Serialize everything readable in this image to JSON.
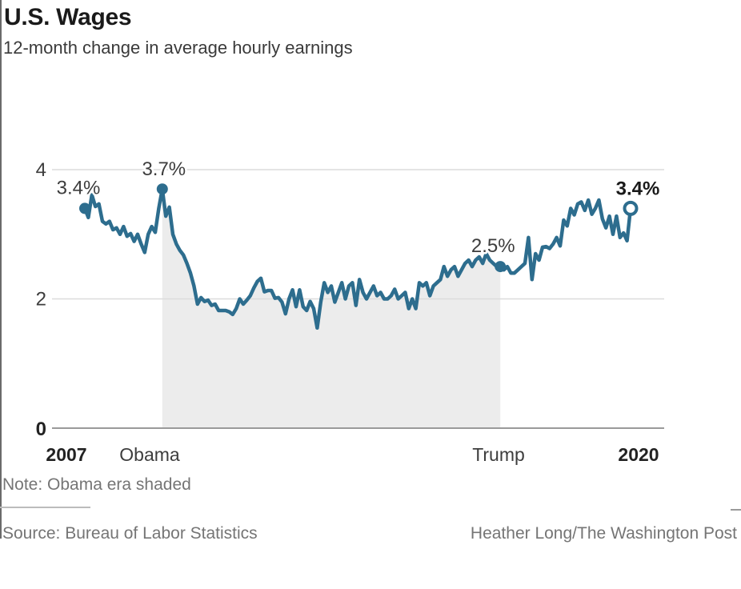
{
  "header": {
    "title": "U.S. Wages",
    "subtitle": "12-month change in average hourly earnings"
  },
  "footer": {
    "note": "Note: Obama era shaded",
    "source": "Source: Bureau of Labor Statistics",
    "credit": "Heather Long/The Washington Post"
  },
  "colors": {
    "line": "#2d6d8e",
    "shade": "#ececec",
    "grid": "#dcdcdc",
    "baseline": "#9a9a9a",
    "axis_text": "#3d3d3d",
    "axis_text_bold": "#222222",
    "annotation_text": "#3d3d3d",
    "annotation_text_bold": "#1a1a1a",
    "muted_text": "#757575"
  },
  "chart_data": {
    "type": "line",
    "title": "U.S. Wages",
    "subtitle": "12-month change in average hourly earnings",
    "unit": "percent",
    "frequency": "monthly",
    "x_start": "2007-03",
    "x_end": "2020-02",
    "ylim": [
      0,
      4.4
    ],
    "grid": true,
    "legend": "none",
    "yticks": [
      {
        "value": 4,
        "label": "4",
        "bold": false
      },
      {
        "value": 2,
        "label": "2",
        "bold": false
      },
      {
        "value": 0,
        "label": "0",
        "bold": true
      }
    ],
    "x_axis_labels": [
      {
        "label": "2007",
        "bold": true
      },
      {
        "label": "Obama",
        "bold": false
      },
      {
        "label": "Trump",
        "bold": false
      },
      {
        "label": "2020",
        "bold": true
      }
    ],
    "shaded_region": {
      "label": "Obama era",
      "from_index": 22,
      "to_index": 118
    },
    "annotations": [
      {
        "index": 0,
        "label": "3.4%",
        "bold": false,
        "marker": "filled"
      },
      {
        "index": 22,
        "label": "3.7%",
        "bold": false,
        "marker": "filled"
      },
      {
        "index": 118,
        "label": "2.5%",
        "bold": false,
        "marker": "filled"
      },
      {
        "index": 155,
        "label": "3.4%",
        "bold": true,
        "marker": "open"
      }
    ],
    "values": [
      3.4,
      3.26,
      3.61,
      3.43,
      3.47,
      3.2,
      3.16,
      3.2,
      3.07,
      3.1,
      3.0,
      3.12,
      2.97,
      3.01,
      2.89,
      3.0,
      2.85,
      2.72,
      3.0,
      3.12,
      3.03,
      3.4,
      3.7,
      3.28,
      3.42,
      3.0,
      2.85,
      2.75,
      2.68,
      2.55,
      2.4,
      2.2,
      1.92,
      2.02,
      1.96,
      1.98,
      1.9,
      1.92,
      1.82,
      1.82,
      1.82,
      1.8,
      1.76,
      1.85,
      2.0,
      1.92,
      1.98,
      2.05,
      2.17,
      2.27,
      2.32,
      2.11,
      2.13,
      2.13,
      2.01,
      2.02,
      1.95,
      1.77,
      2.0,
      2.14,
      1.88,
      2.14,
      1.88,
      1.82,
      1.96,
      1.85,
      1.55,
      1.95,
      2.25,
      2.1,
      2.2,
      1.95,
      2.1,
      2.25,
      2.0,
      2.2,
      2.25,
      1.9,
      2.3,
      2.1,
      2.0,
      2.1,
      2.2,
      2.05,
      2.1,
      2.0,
      2.0,
      2.05,
      2.15,
      2.0,
      2.05,
      2.1,
      1.85,
      2.0,
      1.85,
      2.25,
      2.2,
      2.25,
      2.05,
      2.2,
      2.25,
      2.3,
      2.5,
      2.35,
      2.45,
      2.5,
      2.35,
      2.45,
      2.55,
      2.6,
      2.5,
      2.6,
      2.65,
      2.55,
      2.7,
      2.6,
      2.55,
      2.5,
      2.5,
      2.45,
      2.5,
      2.4,
      2.4,
      2.45,
      2.5,
      2.55,
      2.95,
      2.3,
      2.7,
      2.6,
      2.8,
      2.81,
      2.78,
      2.85,
      2.95,
      2.82,
      3.22,
      3.13,
      3.4,
      3.3,
      3.47,
      3.5,
      3.37,
      3.53,
      3.31,
      3.4,
      3.53,
      3.24,
      3.1,
      3.28,
      3.0,
      3.28,
      2.95,
      3.02,
      2.9,
      3.4
    ]
  }
}
